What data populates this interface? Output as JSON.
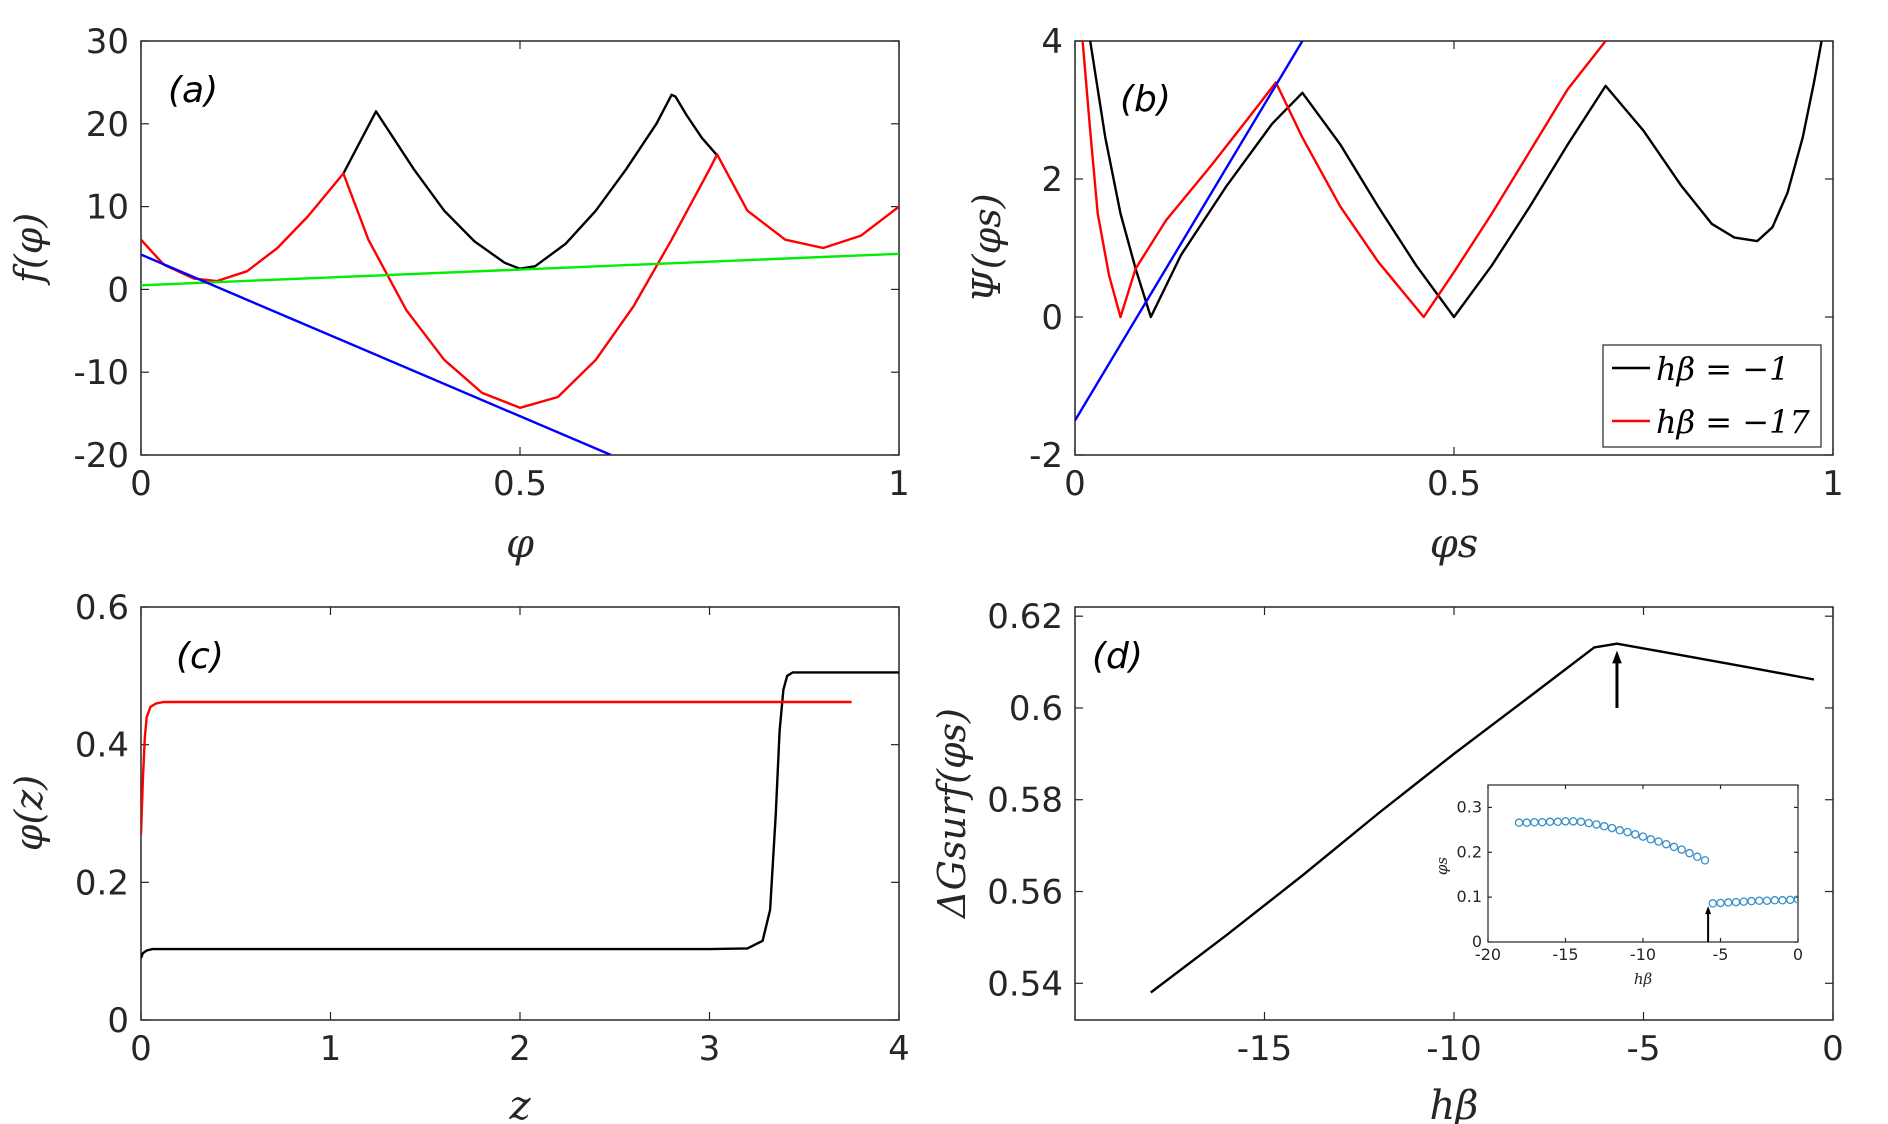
{
  "chart_data": [
    {
      "panel": "(a)",
      "type": "line",
      "xlabel": "φ",
      "ylabel": "f(φ)",
      "xlim": [
        0,
        1
      ],
      "ylim": [
        -20,
        30
      ],
      "xticks": [
        0,
        0.5,
        1
      ],
      "xtick_labels": [
        "0",
        "0.5",
        "1"
      ],
      "yticks": [
        -20,
        -10,
        0,
        10,
        20,
        30
      ],
      "ytick_labels": [
        "-20",
        "-10",
        "0",
        "10",
        "20",
        "30"
      ],
      "series": [
        {
          "name": "black",
          "color": "#000000",
          "x": [
            0.267,
            0.31,
            0.36,
            0.4,
            0.44,
            0.48,
            0.5,
            0.52,
            0.56,
            0.6,
            0.64,
            0.68,
            0.7,
            0.705,
            0.72,
            0.74,
            0.76
          ],
          "y": [
            14,
            21.5,
            14.5,
            9.5,
            5.8,
            3.2,
            2.5,
            2.8,
            5.5,
            9.5,
            14.5,
            20,
            23.5,
            23.3,
            21,
            18.3,
            16.2
          ]
        },
        {
          "name": "red",
          "color": "#ff0000",
          "x": [
            0,
            0.03,
            0.07,
            0.1,
            0.14,
            0.18,
            0.22,
            0.267,
            0.3,
            0.35,
            0.4,
            0.45,
            0.5,
            0.55,
            0.6,
            0.65,
            0.7,
            0.75,
            0.76,
            0.8,
            0.85,
            0.9,
            0.95,
            1.0
          ],
          "y": [
            6,
            3,
            1.3,
            1,
            2.2,
            5,
            8.8,
            14,
            6,
            -2.5,
            -8.5,
            -12.5,
            -14.3,
            -13,
            -8.5,
            -2,
            6,
            14.5,
            16.3,
            9.5,
            6,
            5,
            6.5,
            10
          ]
        },
        {
          "name": "green",
          "color": "#00ee00",
          "x": [
            0,
            1
          ],
          "y": [
            0.5,
            4.3
          ]
        },
        {
          "name": "blue",
          "color": "#0000ff",
          "x": [
            0,
            0.62
          ],
          "y": [
            4.2,
            -20
          ]
        }
      ]
    },
    {
      "panel": "(b)",
      "type": "line",
      "xlabel": "φs",
      "ylabel": "Ψ(φs)",
      "xlim": [
        0,
        1
      ],
      "ylim": [
        -2,
        4
      ],
      "xticks": [
        0,
        0.5,
        1
      ],
      "xtick_labels": [
        "0",
        "0.5",
        "1"
      ],
      "yticks": [
        -2,
        0,
        2,
        4
      ],
      "ytick_labels": [
        "-2",
        "0",
        "2",
        "4"
      ],
      "legend": [
        "hβ = −1",
        "hβ = −17"
      ],
      "legend_position": "bottom-right",
      "series": [
        {
          "name": "hβ = −1",
          "color": "#000000",
          "x": [
            0.02,
            0.04,
            0.06,
            0.08,
            0.1,
            0.14,
            0.2,
            0.26,
            0.3,
            0.35,
            0.4,
            0.45,
            0.5,
            0.55,
            0.6,
            0.65,
            0.7,
            0.75,
            0.8,
            0.84,
            0.87,
            0.9,
            0.92,
            0.94,
            0.96,
            0.975,
            0.985
          ],
          "y": [
            4,
            2.6,
            1.5,
            0.7,
            0,
            0.9,
            1.9,
            2.8,
            3.25,
            2.5,
            1.6,
            0.75,
            0,
            0.75,
            1.6,
            2.5,
            3.35,
            2.7,
            1.9,
            1.35,
            1.15,
            1.1,
            1.3,
            1.8,
            2.6,
            3.4,
            4
          ]
        },
        {
          "name": "hβ = −17",
          "color": "#ff0000",
          "x": [
            0.01,
            0.02,
            0.03,
            0.045,
            0.06,
            0.08,
            0.12,
            0.18,
            0.23,
            0.265,
            0.3,
            0.35,
            0.4,
            0.46,
            0.5,
            0.55,
            0.6,
            0.65,
            0.7
          ],
          "y": [
            4,
            2.7,
            1.5,
            0.6,
            0,
            0.7,
            1.4,
            2.2,
            2.9,
            3.4,
            2.6,
            1.6,
            0.8,
            0,
            0.65,
            1.5,
            2.4,
            3.3,
            4
          ]
        },
        {
          "name": "tangent",
          "color": "#0000ff",
          "x": [
            0,
            0.3
          ],
          "y": [
            -1.5,
            4
          ]
        }
      ]
    },
    {
      "panel": "(c)",
      "type": "line",
      "xlabel": "z",
      "ylabel": "φ(z)",
      "xlim": [
        0,
        4
      ],
      "ylim": [
        0,
        0.6
      ],
      "xticks": [
        0,
        1,
        2,
        3,
        4
      ],
      "xtick_labels": [
        "0",
        "1",
        "2",
        "3",
        "4"
      ],
      "yticks": [
        0,
        0.2,
        0.4,
        0.6
      ],
      "ytick_labels": [
        "0",
        "0.2",
        "0.4",
        "0.6"
      ],
      "series": [
        {
          "name": "black",
          "color": "#000000",
          "x": [
            0,
            0.01,
            0.03,
            0.06,
            0.1,
            1.0,
            2.0,
            3.0,
            3.2,
            3.28,
            3.32,
            3.35,
            3.37,
            3.39,
            3.41,
            3.44,
            3.5,
            4.0
          ],
          "y": [
            0.09,
            0.097,
            0.101,
            0.103,
            0.103,
            0.103,
            0.103,
            0.103,
            0.104,
            0.115,
            0.16,
            0.3,
            0.42,
            0.48,
            0.5,
            0.505,
            0.505,
            0.505
          ]
        },
        {
          "name": "red",
          "color": "#ff0000",
          "x": [
            0,
            0.01,
            0.02,
            0.03,
            0.05,
            0.08,
            0.12,
            0.2,
            1.0,
            2.0,
            3.0,
            3.75
          ],
          "y": [
            0.27,
            0.35,
            0.41,
            0.44,
            0.455,
            0.46,
            0.462,
            0.462,
            0.462,
            0.462,
            0.462,
            0.462
          ]
        }
      ]
    },
    {
      "panel": "(d)",
      "type": "line",
      "xlabel": "hβ",
      "ylabel": "ΔGsurf(φs)",
      "xlim": [
        -20,
        0
      ],
      "ylim": [
        0.532,
        0.622
      ],
      "xticks": [
        -15,
        -10,
        -5,
        0
      ],
      "xtick_labels": [
        "-15",
        "-10",
        "-5",
        "0"
      ],
      "yticks": [
        0.54,
        0.56,
        0.58,
        0.6,
        0.62
      ],
      "ytick_labels": [
        "0.54",
        "0.56",
        "0.58",
        "0.6",
        "0.62"
      ],
      "series": [
        {
          "name": "black",
          "color": "#000000",
          "x": [
            -18,
            -16,
            -14,
            -12,
            -10,
            -8,
            -6.3,
            -5.7,
            -4,
            -2,
            -0.5
          ],
          "y": [
            0.538,
            0.5505,
            0.5635,
            0.577,
            0.59,
            0.6025,
            0.6132,
            0.614,
            0.6115,
            0.6085,
            0.6062
          ]
        }
      ],
      "annotation": {
        "type": "arrow",
        "x": -5.7,
        "y_from": 0.6,
        "y_to": 0.6125
      }
    },
    {
      "panel": "(d) inset",
      "type": "scatter",
      "xlabel": "hβ",
      "ylabel": "φs",
      "xlim": [
        -20,
        0
      ],
      "ylim": [
        0,
        0.35
      ],
      "xticks": [
        -20,
        -15,
        -10,
        -5,
        0
      ],
      "xtick_labels": [
        "-20",
        "-15",
        "-10",
        "-5",
        "0"
      ],
      "yticks": [
        0,
        0.1,
        0.2,
        0.3
      ],
      "ytick_labels": [
        "0",
        "0.1",
        "0.2",
        "0.3"
      ],
      "series": [
        {
          "name": "phi_s",
          "color": "#3a8fc8",
          "x": [
            -18,
            -17.5,
            -17,
            -16.5,
            -16,
            -15.5,
            -15,
            -14.5,
            -14,
            -13.5,
            -13,
            -12.5,
            -12,
            -11.5,
            -11,
            -10.5,
            -10,
            -9.5,
            -9,
            -8.5,
            -8,
            -7.5,
            -7,
            -6.5,
            -6,
            -5.5,
            -5,
            -4.5,
            -4,
            -3.5,
            -3,
            -2.5,
            -2,
            -1.5,
            -1,
            -0.5,
            0
          ],
          "y": [
            0.266,
            0.266,
            0.267,
            0.267,
            0.268,
            0.268,
            0.269,
            0.269,
            0.268,
            0.265,
            0.262,
            0.258,
            0.254,
            0.249,
            0.245,
            0.24,
            0.235,
            0.229,
            0.224,
            0.218,
            0.212,
            0.206,
            0.198,
            0.19,
            0.182,
            0.086,
            0.087,
            0.088,
            0.089,
            0.09,
            0.091,
            0.092,
            0.092,
            0.093,
            0.093,
            0.094,
            0.095
          ]
        }
      ],
      "annotation": {
        "type": "arrow",
        "x": -5.8,
        "y_from": 0,
        "y_to": 0.08
      }
    }
  ]
}
